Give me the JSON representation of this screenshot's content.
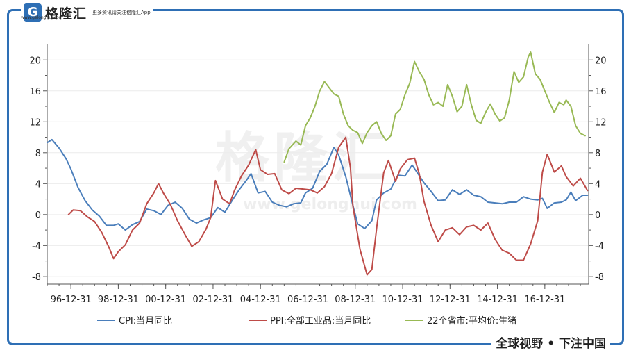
{
  "header": {
    "logo_mark": "G",
    "logo_text": "格隆汇",
    "logo_sub": "www.gelonghui.com",
    "slogan": "更多资讯请关注格隆汇App"
  },
  "footer": {
    "tagline": "全球视野 • 下注中国"
  },
  "watermark": {
    "text": "格隆汇",
    "url": "www.gelonghui.com"
  },
  "colors": {
    "frame": "#2e6fb5",
    "cpi": "#4a7ebb",
    "ppi": "#be4b48",
    "pork": "#98b954"
  },
  "chart_data": {
    "type": "line",
    "title": "",
    "xlabel": "",
    "ylabel": "",
    "ylim_left": [
      -9,
      22
    ],
    "ylim_right": [
      -9,
      22
    ],
    "yticks": [
      -8,
      -4,
      0,
      4,
      8,
      12,
      16,
      20
    ],
    "xlim": [
      1996.0,
      2018.85
    ],
    "xtick_labels": [
      "96-12-31",
      "98-12-31",
      "00-12-31",
      "02-12-31",
      "04-12-31",
      "06-12-31",
      "08-12-31",
      "10-12-31",
      "12-12-31",
      "14-12-31",
      "16-12-31"
    ],
    "xtick_years": [
      1997,
      1999,
      2001,
      2003,
      2005,
      2007,
      2009,
      2011,
      2013,
      2015,
      2017
    ],
    "legend_position": "bottom",
    "series": [
      {
        "name": "CPI:当月同比",
        "color": "#4a7ebb",
        "axis": "left",
        "points": [
          [
            1996.0,
            9.3
          ],
          [
            1996.2,
            9.7
          ],
          [
            1996.5,
            8.6
          ],
          [
            1996.8,
            7.2
          ],
          [
            1997.0,
            5.9
          ],
          [
            1997.3,
            3.5
          ],
          [
            1997.6,
            1.8
          ],
          [
            1997.9,
            0.6
          ],
          [
            1998.2,
            -0.2
          ],
          [
            1998.5,
            -1.4
          ],
          [
            1998.8,
            -1.4
          ],
          [
            1999.0,
            -1.2
          ],
          [
            1999.3,
            -2.0
          ],
          [
            1999.6,
            -1.3
          ],
          [
            1999.9,
            -0.9
          ],
          [
            2000.2,
            0.7
          ],
          [
            2000.5,
            0.5
          ],
          [
            2000.8,
            0.0
          ],
          [
            2001.1,
            1.2
          ],
          [
            2001.4,
            1.6
          ],
          [
            2001.7,
            0.8
          ],
          [
            2002.0,
            -0.6
          ],
          [
            2002.3,
            -1.1
          ],
          [
            2002.6,
            -0.7
          ],
          [
            2002.9,
            -0.4
          ],
          [
            2003.2,
            0.9
          ],
          [
            2003.5,
            0.3
          ],
          [
            2003.8,
            1.8
          ],
          [
            2004.1,
            3.2
          ],
          [
            2004.4,
            4.4
          ],
          [
            2004.6,
            5.3
          ],
          [
            2004.9,
            2.8
          ],
          [
            2005.2,
            3.0
          ],
          [
            2005.5,
            1.6
          ],
          [
            2005.8,
            1.2
          ],
          [
            2006.1,
            1.0
          ],
          [
            2006.4,
            1.4
          ],
          [
            2006.7,
            1.5
          ],
          [
            2006.9,
            2.8
          ],
          [
            2007.2,
            3.4
          ],
          [
            2007.5,
            5.6
          ],
          [
            2007.8,
            6.5
          ],
          [
            2008.1,
            8.7
          ],
          [
            2008.3,
            7.7
          ],
          [
            2008.6,
            4.9
          ],
          [
            2008.9,
            1.2
          ],
          [
            2009.1,
            -1.2
          ],
          [
            2009.4,
            -1.8
          ],
          [
            2009.7,
            -0.8
          ],
          [
            2009.9,
            1.9
          ],
          [
            2010.2,
            2.8
          ],
          [
            2010.5,
            3.3
          ],
          [
            2010.8,
            5.1
          ],
          [
            2011.1,
            5.0
          ],
          [
            2011.4,
            6.4
          ],
          [
            2011.6,
            5.5
          ],
          [
            2011.9,
            4.1
          ],
          [
            2012.2,
            3.0
          ],
          [
            2012.5,
            1.8
          ],
          [
            2012.8,
            1.9
          ],
          [
            2013.1,
            3.2
          ],
          [
            2013.4,
            2.6
          ],
          [
            2013.7,
            3.2
          ],
          [
            2014.0,
            2.5
          ],
          [
            2014.3,
            2.3
          ],
          [
            2014.6,
            1.6
          ],
          [
            2014.9,
            1.5
          ],
          [
            2015.2,
            1.4
          ],
          [
            2015.5,
            1.6
          ],
          [
            2015.8,
            1.6
          ],
          [
            2016.1,
            2.3
          ],
          [
            2016.4,
            2.0
          ],
          [
            2016.7,
            1.9
          ],
          [
            2016.9,
            2.1
          ],
          [
            2017.1,
            0.8
          ],
          [
            2017.4,
            1.5
          ],
          [
            2017.7,
            1.6
          ],
          [
            2017.9,
            1.9
          ],
          [
            2018.1,
            2.9
          ],
          [
            2018.3,
            1.8
          ],
          [
            2018.6,
            2.5
          ],
          [
            2018.8,
            2.5
          ]
        ]
      },
      {
        "name": "PPI:全部工业品:当月同比",
        "color": "#be4b48",
        "axis": "left",
        "points": [
          [
            1996.9,
            0.0
          ],
          [
            1997.1,
            0.6
          ],
          [
            1997.4,
            0.5
          ],
          [
            1997.7,
            -0.3
          ],
          [
            1998.0,
            -0.9
          ],
          [
            1998.3,
            -2.3
          ],
          [
            1998.6,
            -4.2
          ],
          [
            1998.8,
            -5.7
          ],
          [
            1999.0,
            -4.8
          ],
          [
            1999.3,
            -3.9
          ],
          [
            1999.6,
            -2.0
          ],
          [
            1999.9,
            -1.1
          ],
          [
            2000.2,
            1.4
          ],
          [
            2000.5,
            2.8
          ],
          [
            2000.7,
            4.0
          ],
          [
            2000.9,
            2.8
          ],
          [
            2001.2,
            1.3
          ],
          [
            2001.5,
            -0.8
          ],
          [
            2001.8,
            -2.5
          ],
          [
            2002.1,
            -4.1
          ],
          [
            2002.4,
            -3.5
          ],
          [
            2002.7,
            -1.9
          ],
          [
            2002.9,
            -0.4
          ],
          [
            2003.1,
            4.4
          ],
          [
            2003.4,
            2.0
          ],
          [
            2003.7,
            1.4
          ],
          [
            2003.9,
            3.1
          ],
          [
            2004.2,
            5.0
          ],
          [
            2004.5,
            6.4
          ],
          [
            2004.8,
            8.4
          ],
          [
            2005.0,
            5.8
          ],
          [
            2005.3,
            5.2
          ],
          [
            2005.6,
            5.3
          ],
          [
            2005.9,
            3.2
          ],
          [
            2006.2,
            2.7
          ],
          [
            2006.5,
            3.4
          ],
          [
            2006.8,
            3.3
          ],
          [
            2007.1,
            3.2
          ],
          [
            2007.4,
            2.8
          ],
          [
            2007.7,
            3.6
          ],
          [
            2008.0,
            5.3
          ],
          [
            2008.3,
            8.7
          ],
          [
            2008.6,
            10.0
          ],
          [
            2008.8,
            6.0
          ],
          [
            2008.9,
            1.1
          ],
          [
            2009.2,
            -4.5
          ],
          [
            2009.5,
            -7.8
          ],
          [
            2009.7,
            -7.1
          ],
          [
            2009.9,
            -1.8
          ],
          [
            2010.2,
            5.4
          ],
          [
            2010.4,
            7.0
          ],
          [
            2010.7,
            4.3
          ],
          [
            2010.9,
            5.9
          ],
          [
            2011.2,
            7.1
          ],
          [
            2011.5,
            7.3
          ],
          [
            2011.7,
            5.3
          ],
          [
            2011.9,
            1.7
          ],
          [
            2012.2,
            -1.4
          ],
          [
            2012.5,
            -3.5
          ],
          [
            2012.8,
            -2.0
          ],
          [
            2013.1,
            -1.7
          ],
          [
            2013.4,
            -2.6
          ],
          [
            2013.7,
            -1.6
          ],
          [
            2014.0,
            -1.4
          ],
          [
            2014.3,
            -2.0
          ],
          [
            2014.6,
            -1.1
          ],
          [
            2014.9,
            -3.2
          ],
          [
            2015.2,
            -4.6
          ],
          [
            2015.5,
            -5.0
          ],
          [
            2015.8,
            -5.9
          ],
          [
            2016.1,
            -5.9
          ],
          [
            2016.4,
            -3.8
          ],
          [
            2016.7,
            -0.8
          ],
          [
            2016.9,
            5.5
          ],
          [
            2017.1,
            7.8
          ],
          [
            2017.4,
            5.5
          ],
          [
            2017.7,
            6.3
          ],
          [
            2017.9,
            4.9
          ],
          [
            2018.2,
            3.7
          ],
          [
            2018.5,
            4.7
          ],
          [
            2018.8,
            3.1
          ]
        ]
      },
      {
        "name": "22个省市:平均价:生猪",
        "color": "#98b954",
        "axis": "right",
        "points": [
          [
            2006.0,
            6.8
          ],
          [
            2006.2,
            8.5
          ],
          [
            2006.5,
            9.5
          ],
          [
            2006.7,
            9.0
          ],
          [
            2006.9,
            11.5
          ],
          [
            2007.1,
            12.5
          ],
          [
            2007.3,
            14.0
          ],
          [
            2007.5,
            16.0
          ],
          [
            2007.7,
            17.2
          ],
          [
            2007.9,
            16.4
          ],
          [
            2008.1,
            15.6
          ],
          [
            2008.3,
            15.3
          ],
          [
            2008.5,
            13.0
          ],
          [
            2008.7,
            11.5
          ],
          [
            2008.9,
            10.9
          ],
          [
            2009.1,
            10.6
          ],
          [
            2009.3,
            9.2
          ],
          [
            2009.5,
            10.6
          ],
          [
            2009.7,
            11.5
          ],
          [
            2009.9,
            12.0
          ],
          [
            2010.1,
            10.5
          ],
          [
            2010.3,
            9.6
          ],
          [
            2010.5,
            10.2
          ],
          [
            2010.7,
            13.0
          ],
          [
            2010.9,
            13.6
          ],
          [
            2011.1,
            15.5
          ],
          [
            2011.3,
            17.0
          ],
          [
            2011.5,
            19.8
          ],
          [
            2011.7,
            18.5
          ],
          [
            2011.9,
            17.5
          ],
          [
            2012.1,
            15.5
          ],
          [
            2012.3,
            14.2
          ],
          [
            2012.5,
            14.5
          ],
          [
            2012.7,
            14.0
          ],
          [
            2012.9,
            16.8
          ],
          [
            2013.1,
            15.3
          ],
          [
            2013.3,
            13.3
          ],
          [
            2013.5,
            14.0
          ],
          [
            2013.7,
            16.8
          ],
          [
            2013.9,
            14.2
          ],
          [
            2014.1,
            12.2
          ],
          [
            2014.3,
            11.8
          ],
          [
            2014.5,
            13.2
          ],
          [
            2014.7,
            14.3
          ],
          [
            2014.9,
            13.0
          ],
          [
            2015.1,
            12.1
          ],
          [
            2015.3,
            12.5
          ],
          [
            2015.5,
            14.8
          ],
          [
            2015.7,
            18.5
          ],
          [
            2015.9,
            17.1
          ],
          [
            2016.1,
            17.8
          ],
          [
            2016.3,
            20.4
          ],
          [
            2016.4,
            21.0
          ],
          [
            2016.6,
            18.2
          ],
          [
            2016.8,
            17.5
          ],
          [
            2017.0,
            16.0
          ],
          [
            2017.2,
            14.5
          ],
          [
            2017.4,
            13.2
          ],
          [
            2017.6,
            14.5
          ],
          [
            2017.8,
            14.2
          ],
          [
            2017.9,
            14.8
          ],
          [
            2018.1,
            14.0
          ],
          [
            2018.3,
            11.5
          ],
          [
            2018.5,
            10.5
          ],
          [
            2018.7,
            10.2
          ]
        ]
      }
    ]
  }
}
